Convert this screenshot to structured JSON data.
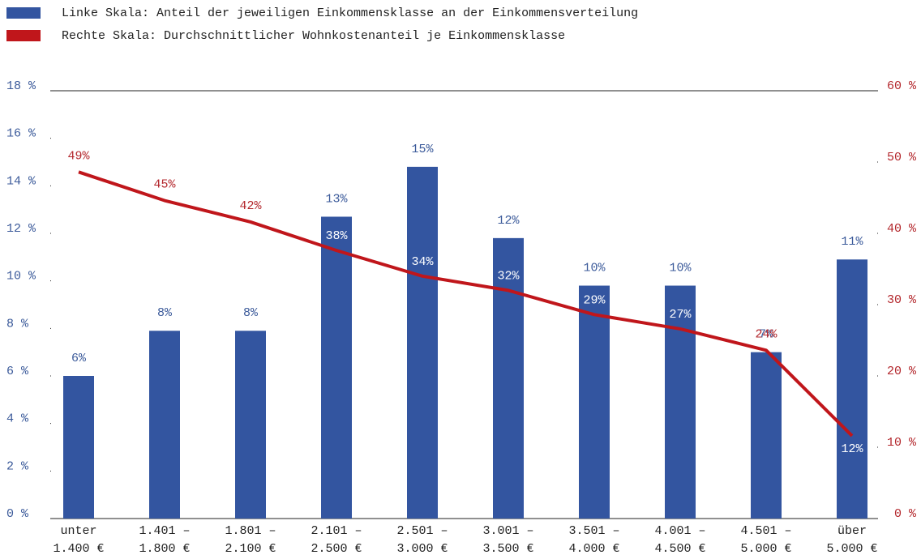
{
  "chart_data": {
    "type": "bar-line",
    "categories": [
      [
        "unter",
        "1.400 €"
      ],
      [
        "1.401 –",
        "1.800 €"
      ],
      [
        "1.801 –",
        "2.100 €"
      ],
      [
        "2.101 –",
        "2.500 €"
      ],
      [
        "2.501 –",
        "3.000 €"
      ],
      [
        "3.001 –",
        "3.500 €"
      ],
      [
        "3.501 –",
        "4.000 €"
      ],
      [
        "4.001 –",
        "4.500 €"
      ],
      [
        "4.501 –",
        "5.000 €"
      ],
      [
        "über",
        "5.000 €"
      ]
    ],
    "series": [
      {
        "name": "Linke Skala: Anteil der jeweiligen Einkommensklasse an der Einkommensverteilung",
        "color": "#3355a0",
        "type": "bar",
        "values": [
          6.0,
          7.9,
          7.9,
          12.7,
          14.8,
          11.8,
          9.8,
          9.8,
          7.0,
          10.9
        ],
        "value_labels": [
          "6%",
          "8%",
          "8%",
          "13%",
          "15%",
          "12%",
          "10%",
          "10%",
          "7%",
          "11%"
        ]
      },
      {
        "name": "Rechte Skala: Durchschnittlicher Wohnkostenanteil je Einkommensklasse",
        "color": "#c0161b",
        "type": "line",
        "axis": "y2",
        "values": [
          48.6,
          44.6,
          41.6,
          37.6,
          34.0,
          32.0,
          28.6,
          26.6,
          23.6,
          11.6
        ],
        "value_labels": [
          "49%",
          "45%",
          "42%",
          "38%",
          "34%",
          "32%",
          "29%",
          "27%",
          "24%",
          "12%"
        ]
      }
    ],
    "ylim": [
      0,
      18
    ],
    "yticks": [
      {
        "value": 0,
        "label": "0 %"
      },
      {
        "value": 2,
        "label": "2 %"
      },
      {
        "value": 4,
        "label": "4 %"
      },
      {
        "value": 6,
        "label": "6 %"
      },
      {
        "value": 8,
        "label": "8 %"
      },
      {
        "value": 10,
        "label": "10 %"
      },
      {
        "value": 12,
        "label": "12 %"
      },
      {
        "value": 14,
        "label": "14 %"
      },
      {
        "value": 16,
        "label": "16 %"
      },
      {
        "value": 18,
        "label": "18 %"
      }
    ],
    "y2lim": [
      0,
      60
    ],
    "y2ticks": [
      {
        "value": 0,
        "label": "0 %"
      },
      {
        "value": 10,
        "label": "10 %"
      },
      {
        "value": 20,
        "label": "20 %"
      },
      {
        "value": 30,
        "label": "30 %"
      },
      {
        "value": 40,
        "label": "40 %"
      },
      {
        "value": 50,
        "label": "50 %"
      },
      {
        "value": 60,
        "label": "60 %"
      }
    ],
    "grid": false
  }
}
